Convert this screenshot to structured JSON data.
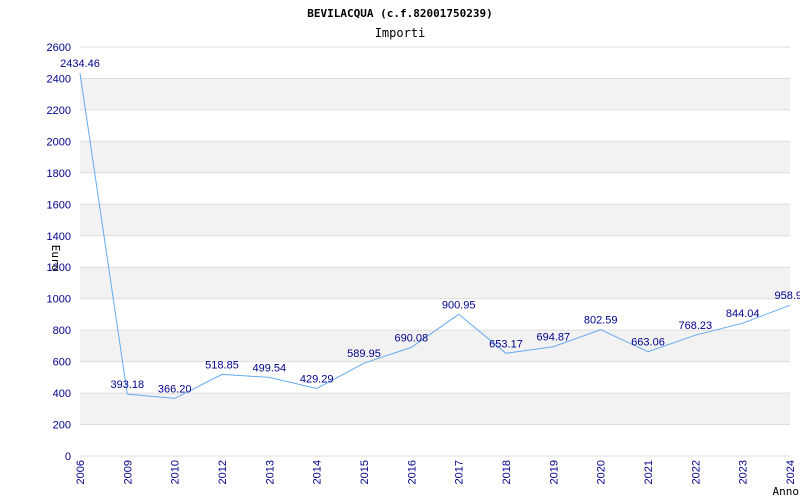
{
  "chart_data": {
    "type": "line",
    "title": "BEVILACQUA (c.f.82001750239)",
    "subtitle": "Importi",
    "xlabel": "Anno",
    "ylabel": "Euro",
    "categories": [
      "2006",
      "2009",
      "2010",
      "2012",
      "2013",
      "2014",
      "2015",
      "2016",
      "2017",
      "2018",
      "2019",
      "2020",
      "2021",
      "2022",
      "2023",
      "2024"
    ],
    "values": [
      2434.46,
      393.18,
      366.2,
      518.85,
      499.54,
      429.29,
      589.95,
      690.08,
      900.95,
      653.17,
      694.87,
      802.59,
      663.06,
      768.23,
      844.04,
      958.9
    ],
    "value_labels": [
      "2434.46",
      "393.18",
      "366.20",
      "518.85",
      "499.54",
      "429.29",
      "589.95",
      "690.08",
      "900.95",
      "653.17",
      "694.87",
      "802.59",
      "663.06",
      "768.23",
      "844.04",
      "958.9"
    ],
    "ylim": [
      0,
      2600
    ],
    "yticks": [
      0,
      200,
      400,
      600,
      800,
      1000,
      1200,
      1400,
      1600,
      1800,
      2000,
      2200,
      2400,
      2600
    ],
    "grid": true,
    "colors": {
      "line": "#66aaee",
      "band": "#f2f2f2",
      "gridline": "#dddddd",
      "tick_text": "#00008b"
    }
  }
}
